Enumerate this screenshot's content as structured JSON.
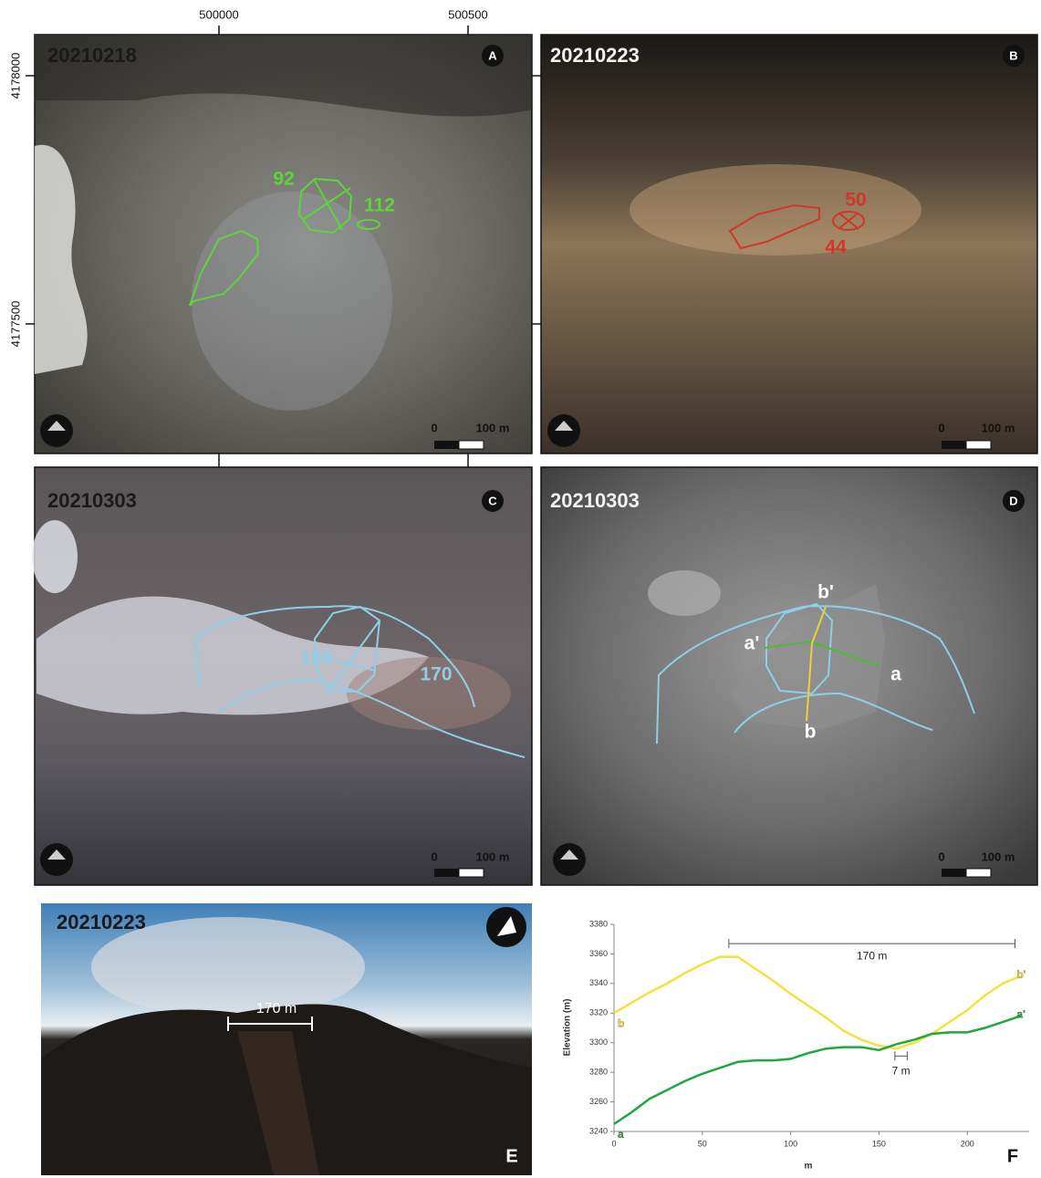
{
  "coordinates": {
    "x_labels": [
      "500000",
      "500500"
    ],
    "y_labels": [
      "4178000",
      "4177500"
    ]
  },
  "panels": [
    {
      "letter": "A",
      "date": "20210218",
      "scale": {
        "zero": "0",
        "length": "100 m"
      },
      "labels": [
        "92",
        "112"
      ]
    },
    {
      "letter": "B",
      "date": "20210223",
      "scale": {
        "zero": "0",
        "length": "100 m"
      },
      "labels": [
        "50",
        "44"
      ]
    },
    {
      "letter": "C",
      "date": "20210303",
      "scale": {
        "zero": "0",
        "length": "100 m"
      },
      "labels": [
        "160",
        "170"
      ]
    },
    {
      "letter": "D",
      "date": "20210303",
      "scale": {
        "zero": "0",
        "length": "100 m"
      },
      "labels": [
        "b'",
        "a'",
        "a",
        "b"
      ]
    },
    {
      "letter": "E",
      "date": "20210223",
      "labels": [
        "170 m"
      ]
    }
  ],
  "chart_data": {
    "type": "line",
    "letter": "F",
    "y_label": "Elevation (m)",
    "x_label": "m",
    "xlim": [
      0,
      235
    ],
    "ylim": [
      3240,
      3380
    ],
    "xticks": [
      0,
      50,
      100,
      150,
      200
    ],
    "yticks": [
      3240,
      3260,
      3280,
      3300,
      3320,
      3340,
      3360,
      3380
    ],
    "x": [
      0,
      10,
      20,
      30,
      40,
      50,
      60,
      70,
      80,
      90,
      100,
      110,
      120,
      130,
      140,
      150,
      160,
      170,
      180,
      190,
      200,
      210,
      220,
      230
    ],
    "series": [
      {
        "name": "b",
        "end_label": "b'",
        "color": "#f5e13c",
        "values": [
          3320,
          3327,
          3334,
          3340,
          3347,
          3353,
          3358,
          3358,
          3350,
          3342,
          3333,
          3325,
          3317,
          3308,
          3302,
          3298,
          3296,
          3300,
          3306,
          3314,
          3322,
          3332,
          3340,
          3345
        ]
      },
      {
        "name": "a",
        "end_label": "a'",
        "color": "#22a83a",
        "values": [
          3245,
          3253,
          3262,
          3268,
          3274,
          3279,
          3283,
          3287,
          3288,
          3288,
          3289,
          3293,
          3296,
          3297,
          3297,
          3295,
          3299,
          3302,
          3306,
          3307,
          3307,
          3310,
          3314,
          3318
        ]
      }
    ],
    "annotations": [
      {
        "text": "170 m",
        "x": [
          65,
          227
        ],
        "y": 3367
      },
      {
        "text": "7 m",
        "x": [
          159,
          166
        ],
        "y": 3291
      }
    ]
  }
}
